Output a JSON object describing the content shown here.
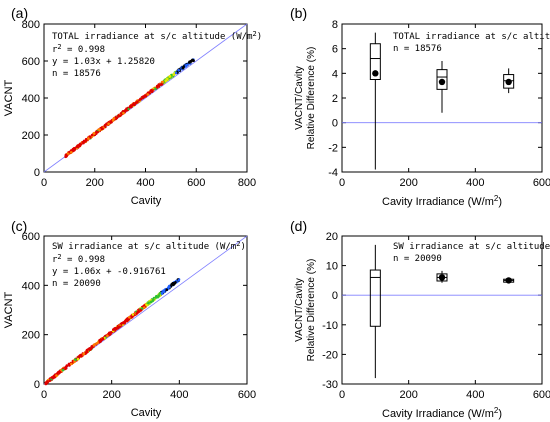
{
  "chart_data": [
    {
      "panel": "(a)",
      "type": "scatter",
      "xlabel": "Cavity",
      "ylabel": "VACNT",
      "xlim": [
        0,
        800
      ],
      "ylim": [
        0,
        800
      ],
      "xticks": [
        0,
        200,
        400,
        600,
        800
      ],
      "yticks": [
        0,
        200,
        400,
        600,
        800
      ],
      "legend": {
        "title": "TOTAL irradiance at s/c altitude (W/m",
        "title_sup": "2",
        "title_end": ")",
        "r2_prefix": "r",
        "r2_sup": "2",
        "r2_value": " = 0.998",
        "fit": "y = 1.03x + 1.25820",
        "n": "n = 18576",
        "placement": "top-left"
      },
      "one_to_one_line": [
        [
          0,
          0
        ],
        [
          800,
          800
        ]
      ],
      "point_colors": [
        "#e00000",
        "#ff8000",
        "#e8e800",
        "#30c030",
        "#2060ff",
        "#000000"
      ],
      "trend_points": [
        [
          85,
          88
        ],
        [
          150,
          155
        ],
        [
          200,
          207
        ],
        [
          250,
          258
        ],
        [
          300,
          310
        ],
        [
          350,
          362
        ],
        [
          400,
          413
        ],
        [
          450,
          465
        ],
        [
          500,
          516
        ],
        [
          550,
          568
        ],
        [
          590,
          606
        ]
      ]
    },
    {
      "panel": "(b)",
      "type": "box",
      "xlabel_main": "Cavity Irradiance (W/m",
      "xlabel_sup": "2",
      "xlabel_end": ")",
      "ylabel_line1": "VACNT/Cavity",
      "ylabel_line2": "Relative Difference (%)",
      "xlim": [
        0,
        600
      ],
      "ylim": [
        -4,
        8
      ],
      "xticks": [
        0,
        200,
        400,
        600
      ],
      "yticks": [
        -4,
        -2,
        0,
        2,
        4,
        6,
        8
      ],
      "reference_line": 0,
      "legend": {
        "title": "TOTAL irradiance at s/c altitude",
        "n": "n = 18576",
        "placement": "top-center"
      },
      "boxes": [
        {
          "x": 100,
          "whisker_low": -3.8,
          "q1": 3.5,
          "median": 5.2,
          "q3": 6.4,
          "whisker_high": 7.3,
          "mean": 4.0
        },
        {
          "x": 300,
          "whisker_low": 0.8,
          "q1": 2.7,
          "median": 3.7,
          "q3": 4.3,
          "whisker_high": 5.0,
          "mean": 3.3
        },
        {
          "x": 500,
          "whisker_low": 2.4,
          "q1": 2.8,
          "median": 3.4,
          "q3": 3.9,
          "whisker_high": 4.4,
          "mean": 3.3
        }
      ]
    },
    {
      "panel": "(c)",
      "type": "scatter",
      "xlabel": "Cavity",
      "ylabel": "VACNT",
      "xlim": [
        0,
        600
      ],
      "ylim": [
        0,
        600
      ],
      "xticks": [
        0,
        200,
        400,
        600
      ],
      "yticks": [
        0,
        200,
        400,
        600
      ],
      "legend": {
        "title": "SW irradiance at s/c altitude (W/m",
        "title_sup": "2",
        "title_end": ")",
        "r2_prefix": "r",
        "r2_sup": "2",
        "r2_value": " = 0.998",
        "fit": "y = 1.06x + -0.916761",
        "n": "n = 20090",
        "placement": "top-left"
      },
      "one_to_one_line": [
        [
          0,
          0
        ],
        [
          600,
          600
        ]
      ],
      "point_colors": [
        "#e00000",
        "#ff8000",
        "#e8e800",
        "#30c030",
        "#2060ff",
        "#000000"
      ],
      "trend_points": [
        [
          5,
          3
        ],
        [
          50,
          52
        ],
        [
          100,
          104
        ],
        [
          150,
          157
        ],
        [
          200,
          211
        ],
        [
          250,
          264
        ],
        [
          300,
          318
        ],
        [
          350,
          371
        ],
        [
          400,
          425
        ]
      ]
    },
    {
      "panel": "(d)",
      "type": "box",
      "xlabel_main": "Cavity Irradiance (W/m",
      "xlabel_sup": "2",
      "xlabel_end": ")",
      "ylabel_line1": "VACNT/Cavity",
      "ylabel_line2": "Relative Difference (%)",
      "xlim": [
        0,
        600
      ],
      "ylim": [
        -30,
        20
      ],
      "xticks": [
        0,
        200,
        400,
        600
      ],
      "yticks": [
        -30,
        -20,
        -10,
        0,
        10,
        20
      ],
      "reference_line": 0,
      "legend": {
        "title": "SW irradiance at s/c altitude",
        "n": "n = 20090",
        "placement": "top-center"
      },
      "boxes": [
        {
          "x": 100,
          "whisker_low": -28.0,
          "q1": -10.5,
          "median": 6.0,
          "q3": 8.5,
          "whisker_high": 17.0,
          "mean": null
        },
        {
          "x": 300,
          "whisker_low": 4.2,
          "q1": 4.8,
          "median": 6.0,
          "q3": 7.2,
          "whisker_high": 8.2,
          "mean": 6.0
        },
        {
          "x": 500,
          "whisker_low": 4.2,
          "q1": 4.4,
          "median": 5.0,
          "q3": 5.4,
          "whisker_high": 5.8,
          "mean": 5.0
        }
      ]
    }
  ]
}
